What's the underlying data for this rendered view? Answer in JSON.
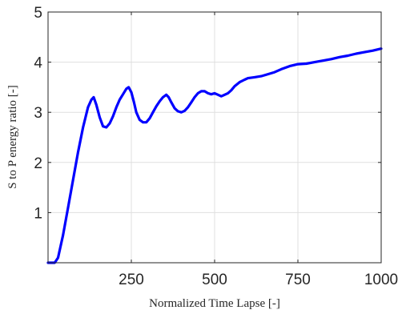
{
  "chart_data": {
    "type": "line",
    "title": "",
    "xlabel": "Normalized Time Lapse [-]",
    "ylabel": "S to P energy ratio [-]",
    "xlim": [
      0,
      1000
    ],
    "ylim": [
      0,
      5
    ],
    "xticks": [
      250,
      500,
      750,
      1000
    ],
    "xtick_labels": [
      "250",
      "500",
      "750",
      "1000"
    ],
    "yticks": [
      1,
      2,
      3,
      4,
      5
    ],
    "ytick_labels": [
      "1",
      "2",
      "3",
      "4",
      "5"
    ],
    "grid": true,
    "legend": "none",
    "series": [
      {
        "color": "#0000ff",
        "x": [
          0,
          20,
          30,
          45,
          60,
          75,
          90,
          105,
          120,
          130,
          137,
          145,
          155,
          165,
          175,
          185,
          195,
          205,
          215,
          225,
          235,
          242,
          250,
          258,
          265,
          275,
          285,
          295,
          305,
          315,
          325,
          335,
          345,
          355,
          362,
          370,
          380,
          390,
          400,
          410,
          420,
          430,
          440,
          450,
          460,
          470,
          480,
          490,
          500,
          510,
          520,
          530,
          540,
          550,
          560,
          575,
          590,
          600,
          620,
          640,
          660,
          680,
          700,
          725,
          750,
          775,
          800,
          825,
          850,
          875,
          900,
          925,
          950,
          975,
          1000
        ],
        "y": [
          0,
          0,
          0.1,
          0.55,
          1.1,
          1.65,
          2.2,
          2.7,
          3.1,
          3.25,
          3.3,
          3.15,
          2.9,
          2.72,
          2.7,
          2.78,
          2.92,
          3.1,
          3.25,
          3.36,
          3.47,
          3.5,
          3.4,
          3.2,
          3.0,
          2.85,
          2.8,
          2.8,
          2.88,
          3.0,
          3.12,
          3.22,
          3.3,
          3.35,
          3.3,
          3.2,
          3.08,
          3.02,
          3.0,
          3.03,
          3.1,
          3.2,
          3.3,
          3.38,
          3.42,
          3.42,
          3.38,
          3.36,
          3.38,
          3.35,
          3.32,
          3.35,
          3.38,
          3.44,
          3.52,
          3.6,
          3.65,
          3.68,
          3.7,
          3.72,
          3.76,
          3.8,
          3.86,
          3.92,
          3.96,
          3.97,
          4.0,
          4.03,
          4.06,
          4.1,
          4.13,
          4.17,
          4.2,
          4.23,
          4.27
        ]
      }
    ]
  }
}
